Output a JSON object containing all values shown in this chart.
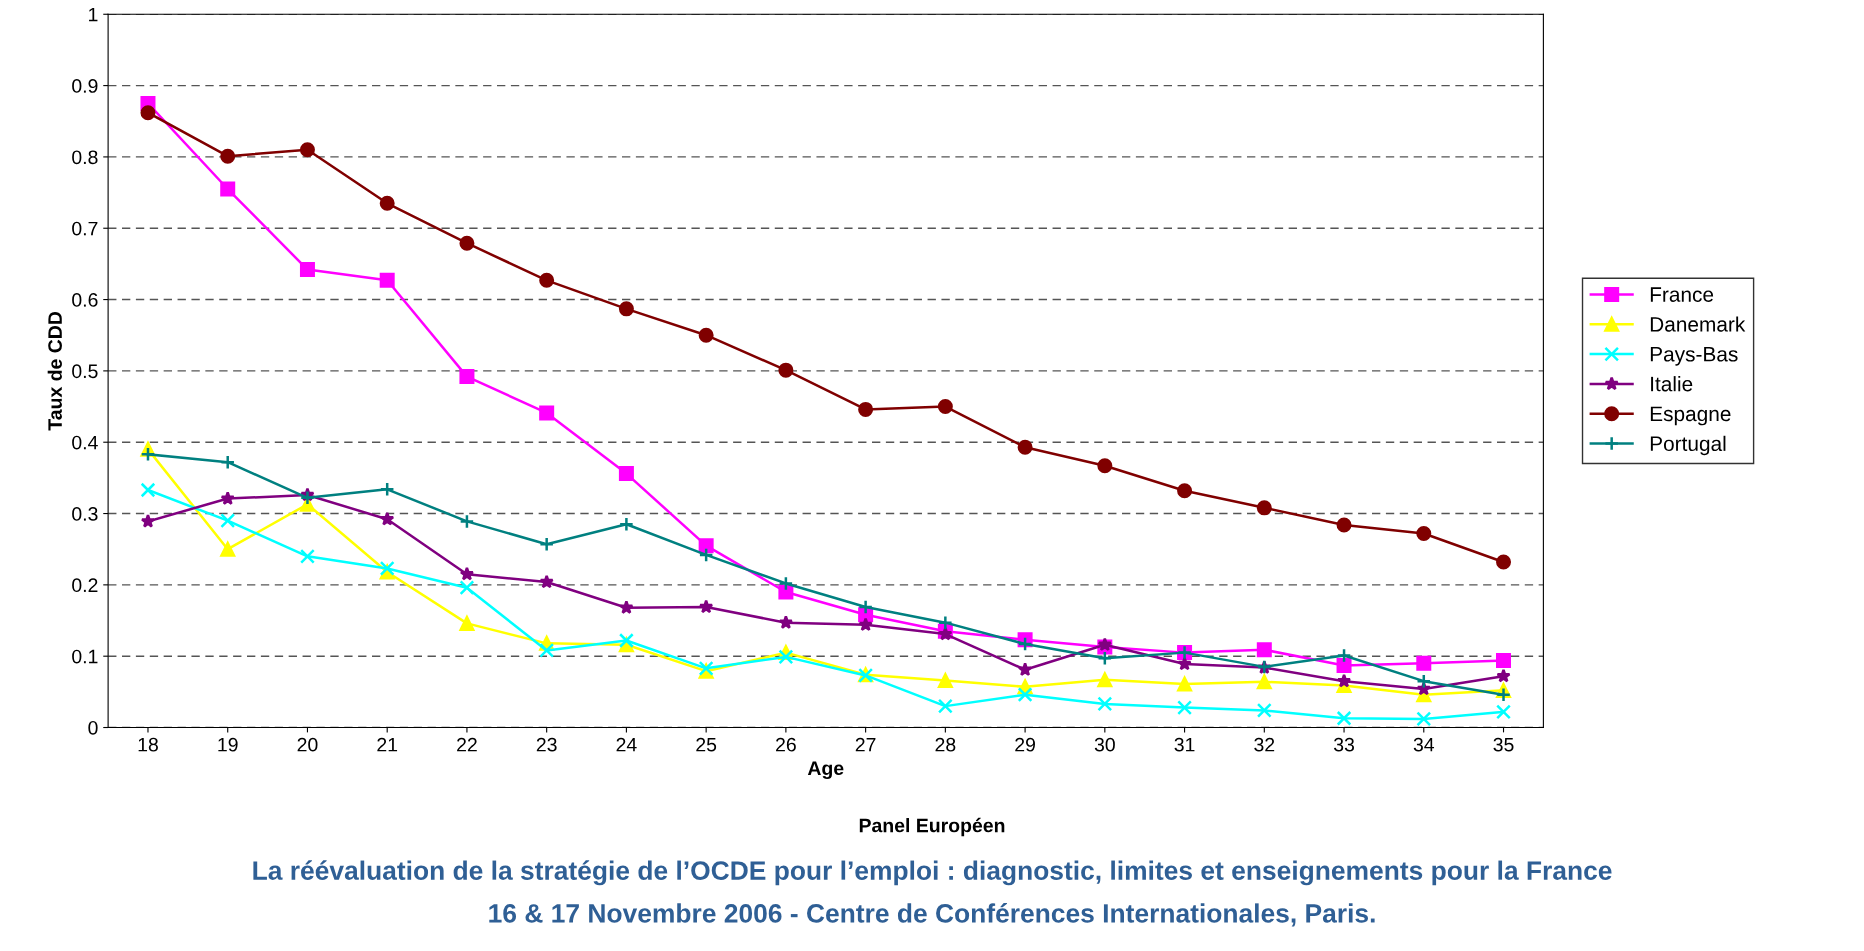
{
  "chart_data": {
    "type": "line",
    "xlabel": "Age",
    "ylabel": "Taux de CDD",
    "categories": [
      "18",
      "19",
      "20",
      "21",
      "22",
      "23",
      "24",
      "25",
      "26",
      "27",
      "28",
      "29",
      "30",
      "31",
      "32",
      "33",
      "34",
      "35"
    ],
    "series": [
      {
        "name": "France",
        "color": "#ff00ff",
        "marker": "square",
        "values": [
          0.875,
          0.755,
          0.642,
          0.627,
          0.492,
          0.441,
          0.356,
          0.255,
          0.19,
          0.158,
          0.135,
          0.123,
          0.113,
          0.105,
          0.109,
          0.087,
          0.09,
          0.094
        ]
      },
      {
        "name": "Danemark",
        "color": "#ffff00",
        "marker": "triangle",
        "values": [
          0.39,
          0.25,
          0.313,
          0.218,
          0.146,
          0.118,
          0.116,
          0.079,
          0.105,
          0.074,
          0.066,
          0.057,
          0.067,
          0.061,
          0.064,
          0.059,
          0.046,
          0.052
        ]
      },
      {
        "name": "Pays-Bas",
        "color": "#00ffff",
        "marker": "cross",
        "values": [
          0.333,
          0.29,
          0.24,
          0.223,
          0.196,
          0.108,
          0.122,
          0.083,
          0.099,
          0.073,
          0.03,
          0.046,
          0.033,
          0.028,
          0.024,
          0.013,
          0.012,
          0.022
        ]
      },
      {
        "name": "Italie",
        "color": "#800080",
        "marker": "star",
        "values": [
          0.289,
          0.321,
          0.326,
          0.292,
          0.215,
          0.204,
          0.168,
          0.169,
          0.147,
          0.144,
          0.131,
          0.081,
          0.116,
          0.089,
          0.084,
          0.065,
          0.054,
          0.072
        ]
      },
      {
        "name": "Espagne",
        "color": "#800000",
        "marker": "circle",
        "values": [
          0.862,
          0.801,
          0.81,
          0.735,
          0.679,
          0.627,
          0.587,
          0.55,
          0.501,
          0.446,
          0.45,
          0.393,
          0.367,
          0.332,
          0.308,
          0.284,
          0.272,
          0.232
        ]
      },
      {
        "name": "Portugal",
        "color": "#008080",
        "marker": "plus",
        "values": [
          0.383,
          0.372,
          0.322,
          0.334,
          0.289,
          0.257,
          0.285,
          0.242,
          0.202,
          0.169,
          0.147,
          0.117,
          0.097,
          0.105,
          0.085,
          0.101,
          0.065,
          0.046
        ]
      }
    ],
    "ylim": [
      0,
      1
    ],
    "yticks": [
      0,
      0.1,
      0.2,
      0.3,
      0.4,
      0.5,
      0.6,
      0.7,
      0.8,
      0.9,
      1
    ],
    "grid": "y",
    "legend": "right",
    "line_style": "solid",
    "annotations": [
      "Panel Européen",
      "La réévaluation de la stratégie de l’OCDE pour l’emploi : diagnostic, limites et enseignements pour la France",
      "16 & 17 Novembre 2006 - Centre de Conférences Internationales, Paris."
    ]
  }
}
